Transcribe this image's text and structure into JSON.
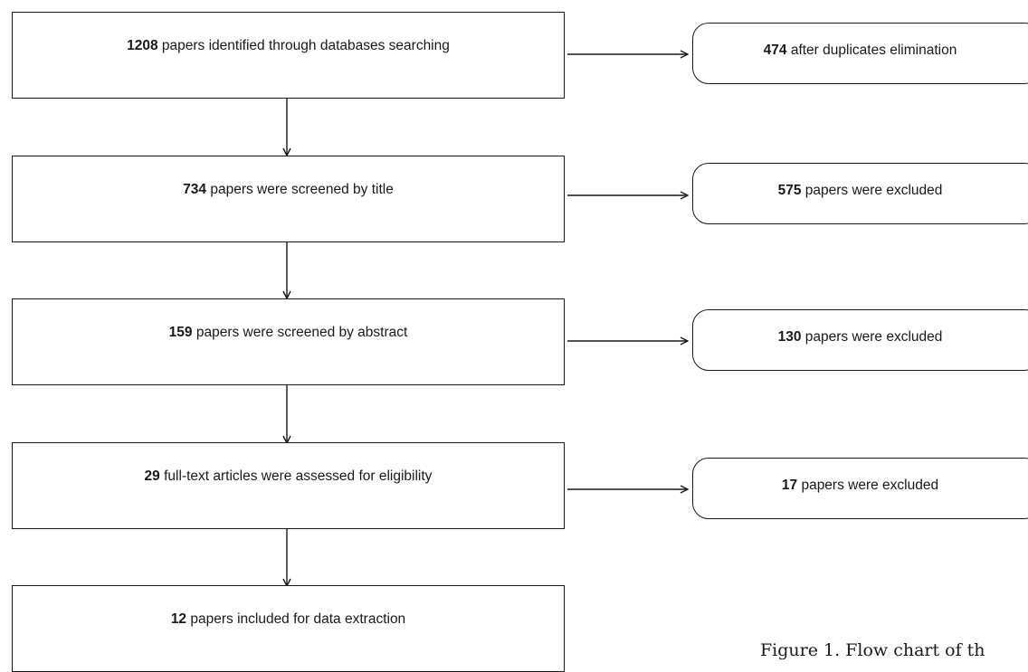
{
  "steps": [
    {
      "number": "1208",
      "text": " papers identified through databases searching"
    },
    {
      "number": "734",
      "text": " papers were screened by title"
    },
    {
      "number": "159",
      "text": " papers were screened by abstract"
    },
    {
      "number": "29",
      "text": " full-text articles were assessed for eligibility"
    },
    {
      "number": "12",
      "text": " papers included for data extraction"
    }
  ],
  "exclusions": [
    {
      "number": "474",
      "text": " after duplicates elimination"
    },
    {
      "number": "575",
      "text": " papers were excluded"
    },
    {
      "number": "130",
      "text": " papers were excluded"
    },
    {
      "number": "17",
      "text": " papers were excluded"
    }
  ],
  "caption": "Figure 1. Flow chart of th"
}
